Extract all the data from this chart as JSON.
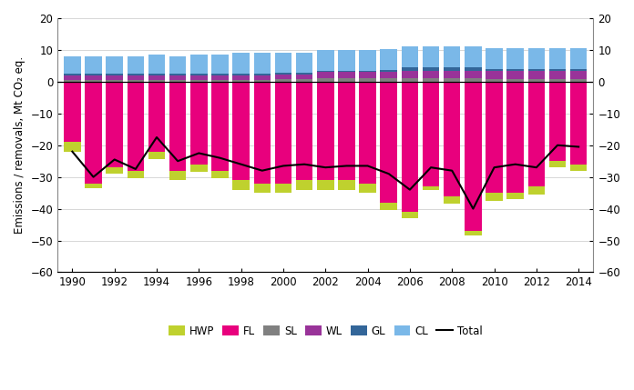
{
  "years": [
    1990,
    1991,
    1992,
    1993,
    1994,
    1995,
    1996,
    1997,
    1998,
    1999,
    2000,
    2001,
    2002,
    2003,
    2004,
    2005,
    2006,
    2007,
    2008,
    2009,
    2010,
    2011,
    2012,
    2013,
    2014
  ],
  "HWP": [
    -3.0,
    -1.5,
    -2.0,
    -2.5,
    -2.5,
    -3.0,
    -2.5,
    -2.5,
    -3.0,
    -3.0,
    -3.0,
    -3.0,
    -3.0,
    -3.0,
    -3.0,
    -2.5,
    -2.0,
    -1.0,
    -2.5,
    -1.5,
    -2.5,
    -2.0,
    -2.5,
    -2.0,
    -2.0
  ],
  "FL": [
    -19.0,
    -32.0,
    -27.0,
    -28.0,
    -22.0,
    -28.0,
    -26.0,
    -28.0,
    -31.0,
    -32.0,
    -32.0,
    -31.0,
    -31.0,
    -31.0,
    -32.0,
    -38.0,
    -41.0,
    -33.0,
    -36.0,
    -47.0,
    -35.0,
    -35.0,
    -33.0,
    -25.0,
    -26.0
  ],
  "SL": [
    0.5,
    0.5,
    0.5,
    0.5,
    0.5,
    0.5,
    0.5,
    0.5,
    0.5,
    0.5,
    0.7,
    0.7,
    1.0,
    1.0,
    1.0,
    1.0,
    1.0,
    1.0,
    1.0,
    1.0,
    0.8,
    0.8,
    0.8,
    0.8,
    0.8
  ],
  "WL": [
    1.5,
    1.5,
    1.5,
    1.5,
    1.5,
    1.5,
    1.5,
    1.5,
    1.5,
    1.5,
    1.5,
    1.5,
    2.0,
    2.0,
    2.0,
    2.0,
    2.5,
    2.5,
    2.5,
    2.5,
    2.5,
    2.5,
    2.5,
    2.5,
    2.5
  ],
  "GL": [
    0.5,
    0.5,
    0.5,
    0.5,
    0.5,
    0.5,
    0.5,
    0.5,
    0.5,
    0.5,
    0.5,
    0.5,
    0.5,
    0.5,
    0.5,
    0.8,
    1.0,
    1.0,
    1.0,
    1.0,
    0.8,
    0.8,
    0.8,
    0.8,
    0.8
  ],
  "CL": [
    5.5,
    5.5,
    5.5,
    5.5,
    6.0,
    5.5,
    6.0,
    6.0,
    6.5,
    6.5,
    6.5,
    6.5,
    6.5,
    6.5,
    6.5,
    6.5,
    6.5,
    6.5,
    6.5,
    6.5,
    6.5,
    6.5,
    6.5,
    6.5,
    6.5
  ],
  "Total": [
    -22.0,
    -30.0,
    -24.5,
    -27.5,
    -17.5,
    -25.0,
    -22.5,
    -24.0,
    -26.0,
    -28.0,
    -26.5,
    -26.0,
    -27.0,
    -26.5,
    -26.5,
    -29.0,
    -34.0,
    -27.0,
    -28.0,
    -40.0,
    -27.0,
    -26.0,
    -27.0,
    -20.0,
    -20.5
  ],
  "colors": {
    "HWP": "#bfd12e",
    "FL": "#e8007d",
    "SL": "#808080",
    "WL": "#993399",
    "GL": "#336699",
    "CL": "#7ab8e8"
  },
  "ylim": [
    -60,
    20
  ],
  "yticks": [
    -60,
    -50,
    -40,
    -30,
    -20,
    -10,
    0,
    10,
    20
  ],
  "ylabel": "Emissions / removals, Mt CO₂ eq.",
  "background_color": "#ffffff",
  "grid_color": "#c8c8c8"
}
